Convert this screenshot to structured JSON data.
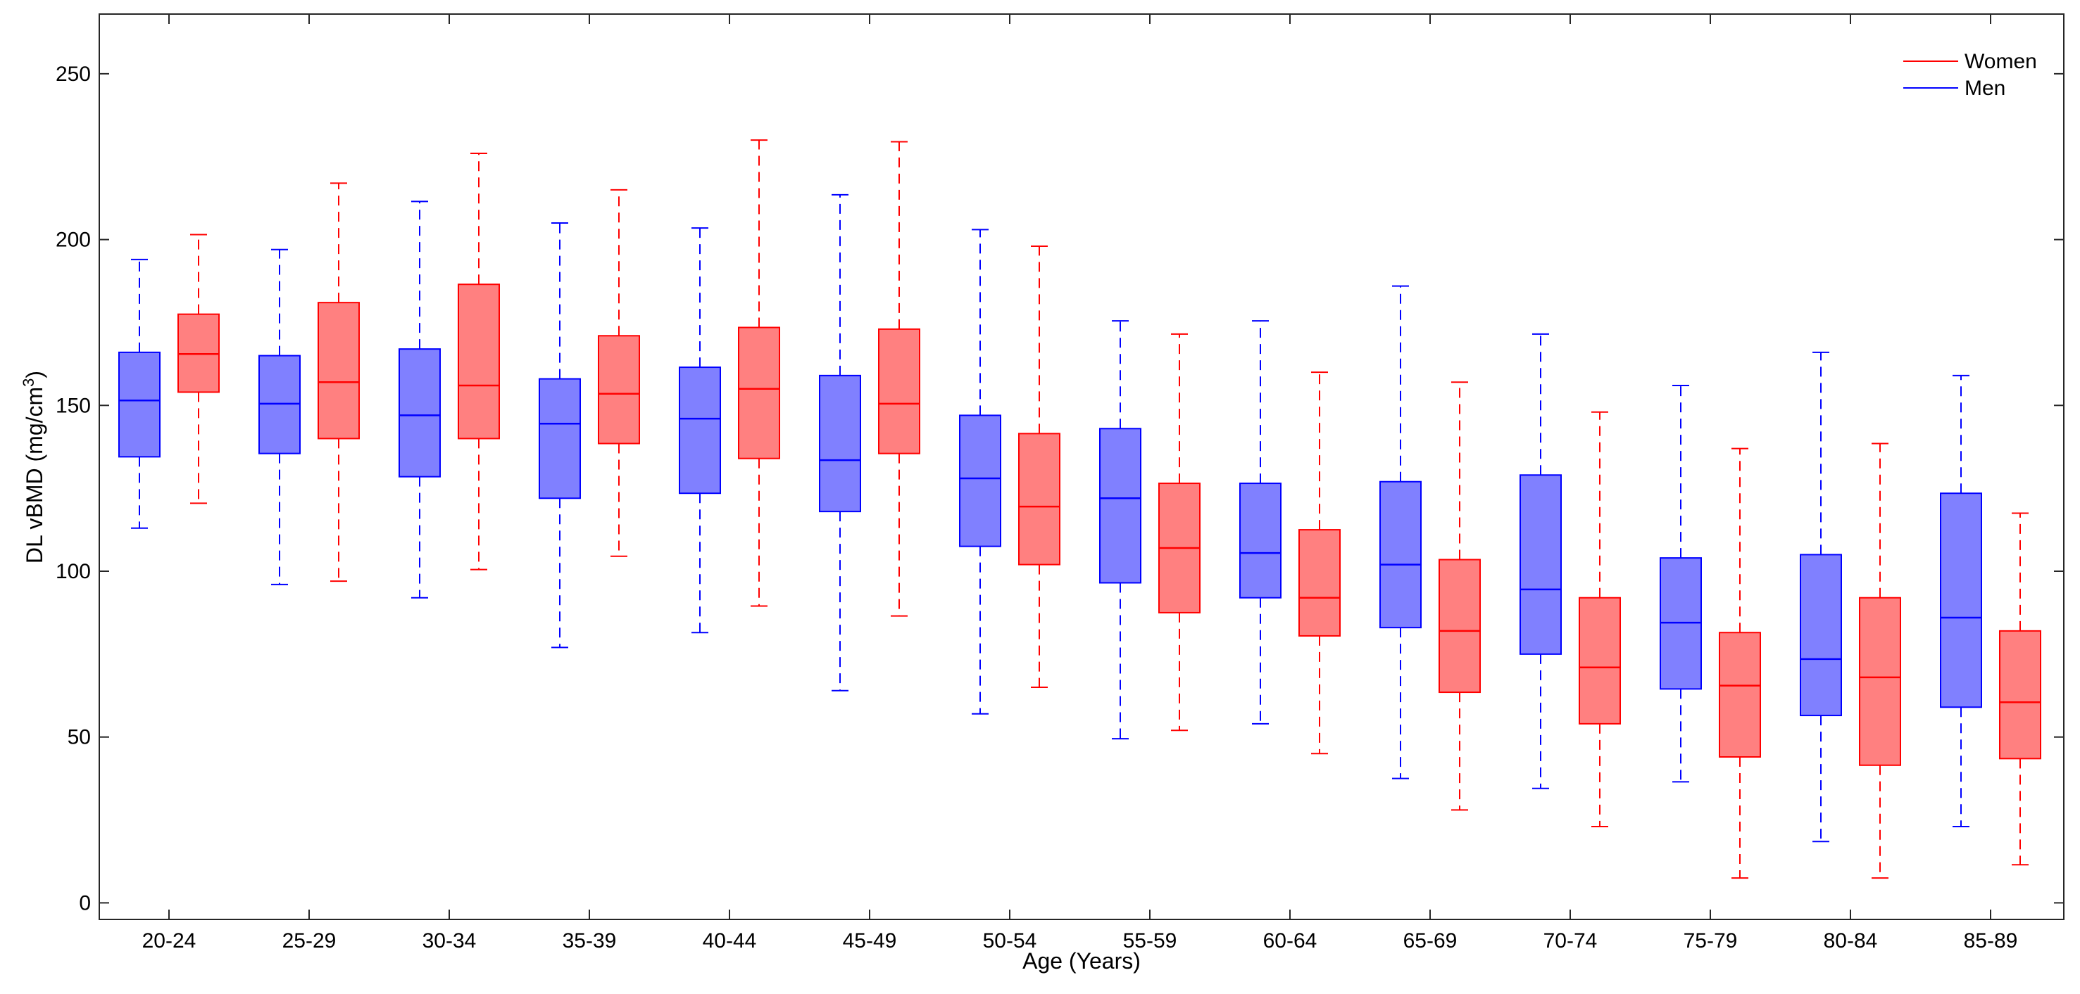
{
  "chart_data": {
    "type": "boxplot",
    "title": "",
    "xlabel": "Age (Years)",
    "ylabel_main": "DL vBMD (mg/cm",
    "ylabel_sup": "3",
    "ylabel_close": ")",
    "ylim": [
      -5,
      268
    ],
    "yticks": [
      0,
      50,
      100,
      150,
      200,
      250
    ],
    "ytick_labels": [
      "0",
      "50",
      "100",
      "150",
      "200",
      "250"
    ],
    "categories": [
      "20-24",
      "25-29",
      "30-34",
      "35-39",
      "40-44",
      "45-49",
      "50-54",
      "55-59",
      "60-64",
      "65-69",
      "70-74",
      "75-79",
      "80-84",
      "85-89"
    ],
    "legend": {
      "placement": "top-right",
      "entries": [
        "Women",
        "Men"
      ]
    },
    "series": [
      {
        "name": "Men",
        "position": "left",
        "color": "#0000ff",
        "fill": "#8080ff",
        "boxes": [
          {
            "whislo": 113,
            "q1": 134.5,
            "med": 151.5,
            "q3": 166,
            "whishi": 194
          },
          {
            "whislo": 96,
            "q1": 135.5,
            "med": 150.5,
            "q3": 165,
            "whishi": 197
          },
          {
            "whislo": 92,
            "q1": 128.5,
            "med": 147,
            "q3": 167,
            "whishi": 211.5
          },
          {
            "whislo": 77,
            "q1": 122,
            "med": 144.5,
            "q3": 158,
            "whishi": 205
          },
          {
            "whislo": 81.5,
            "q1": 123.5,
            "med": 146,
            "q3": 161.5,
            "whishi": 203.5
          },
          {
            "whislo": 64,
            "q1": 118,
            "med": 133.5,
            "q3": 159,
            "whishi": 213.5
          },
          {
            "whislo": 57,
            "q1": 107.5,
            "med": 128,
            "q3": 147,
            "whishi": 203
          },
          {
            "whislo": 49.5,
            "q1": 96.5,
            "med": 122,
            "q3": 143,
            "whishi": 175.5
          },
          {
            "whislo": 54,
            "q1": 92,
            "med": 105.5,
            "q3": 126.5,
            "whishi": 175.5
          },
          {
            "whislo": 37.5,
            "q1": 83,
            "med": 102,
            "q3": 127,
            "whishi": 186
          },
          {
            "whislo": 34.5,
            "q1": 75,
            "med": 94.5,
            "q3": 129,
            "whishi": 171.5
          },
          {
            "whislo": 36.5,
            "q1": 64.5,
            "med": 84.5,
            "q3": 104,
            "whishi": 156
          },
          {
            "whislo": 18.5,
            "q1": 56.5,
            "med": 73.5,
            "q3": 105,
            "whishi": 166
          },
          {
            "whislo": 23,
            "q1": 59,
            "med": 86,
            "q3": 123.5,
            "whishi": 159
          }
        ]
      },
      {
        "name": "Women",
        "position": "right",
        "color": "#ff0000",
        "fill": "#ff8080",
        "boxes": [
          {
            "whislo": 120.5,
            "q1": 154,
            "med": 165.5,
            "q3": 177.5,
            "whishi": 201.5
          },
          {
            "whislo": 97,
            "q1": 140,
            "med": 157,
            "q3": 181,
            "whishi": 217
          },
          {
            "whislo": 100.5,
            "q1": 140,
            "med": 156,
            "q3": 186.5,
            "whishi": 226
          },
          {
            "whislo": 104.5,
            "q1": 138.5,
            "med": 153.5,
            "q3": 171,
            "whishi": 215
          },
          {
            "whislo": 89.5,
            "q1": 134,
            "med": 155,
            "q3": 173.5,
            "whishi": 230
          },
          {
            "whislo": 86.5,
            "q1": 135.5,
            "med": 150.5,
            "q3": 173,
            "whishi": 229.5
          },
          {
            "whislo": 65,
            "q1": 102,
            "med": 119.5,
            "q3": 141.5,
            "whishi": 198
          },
          {
            "whislo": 52,
            "q1": 87.5,
            "med": 107,
            "q3": 126.5,
            "whishi": 171.5
          },
          {
            "whislo": 45,
            "q1": 80.5,
            "med": 92,
            "q3": 112.5,
            "whishi": 160
          },
          {
            "whislo": 28,
            "q1": 63.5,
            "med": 82,
            "q3": 103.5,
            "whishi": 157
          },
          {
            "whislo": 23,
            "q1": 54,
            "med": 71,
            "q3": 92,
            "whishi": 148
          },
          {
            "whislo": 7.5,
            "q1": 44,
            "med": 65.5,
            "q3": 81.5,
            "whishi": 137
          },
          {
            "whislo": 7.5,
            "q1": 41.5,
            "med": 68,
            "q3": 92,
            "whishi": 138.5
          },
          {
            "whislo": 11.5,
            "q1": 43.5,
            "med": 60.5,
            "q3": 82,
            "whishi": 117.5
          }
        ]
      }
    ]
  }
}
